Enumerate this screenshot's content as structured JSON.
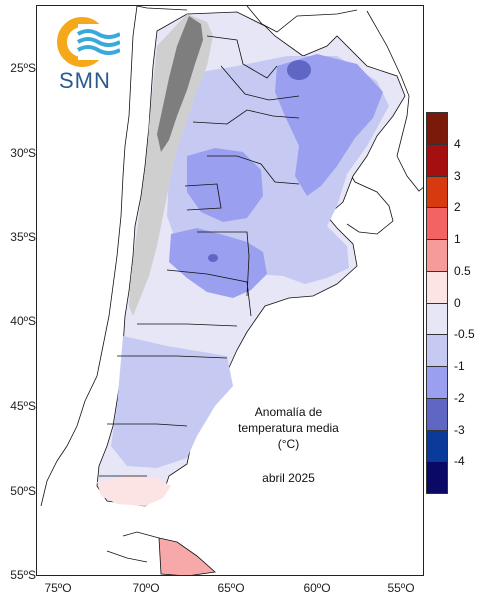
{
  "map": {
    "logo_text": "SMN",
    "annotation_title": "Anomalía de temperatura media (°C)",
    "annotation_date": "abril 2025",
    "lat_labels": [
      "25ºS",
      "30ºS",
      "35ºS",
      "40ºS",
      "45ºS",
      "50ºS",
      "55ºS"
    ],
    "lon_labels": [
      "75ºO",
      "70ºO",
      "65ºO",
      "60ºO",
      "55ºO"
    ],
    "colors": {
      "ocean": "#ffffff",
      "boundary": "#111111",
      "andes_light": "#cfcfcf",
      "andes_dark": "#7e7e7e",
      "anomaly_neg_0_5": "#e6e6f7",
      "anomaly_neg_1": "#c6c9f2",
      "anomaly_neg_2": "#9b9ff0",
      "anomaly_neg_3": "#6066c4",
      "anomaly_pos_0_5": "#fde4e4",
      "anomaly_pos_1": "#f7a9a9"
    }
  },
  "legend": {
    "labels": [
      "4",
      "3",
      "2",
      "1",
      "0.5",
      "0",
      "-0.5",
      "-1",
      "-2",
      "-3",
      "-4"
    ],
    "colors": [
      "#7a1a0a",
      "#a50f0f",
      "#d63a0e",
      "#f36363",
      "#f79a9a",
      "#fde4e4",
      "#e6e6f7",
      "#c6c9f2",
      "#9b9ff0",
      "#6066c4",
      "#0a3a9a",
      "#0a0a66"
    ]
  }
}
